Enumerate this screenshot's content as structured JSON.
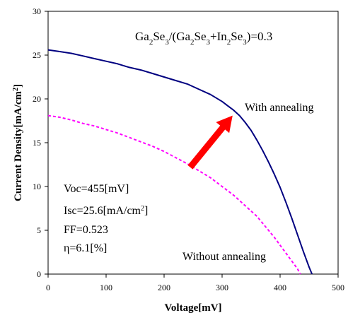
{
  "chart_data": {
    "type": "line",
    "xlabel": "Voltage[mV]",
    "ylabel": "Current Density[mA/cm",
    "ylabel_sup": "2",
    "ylabel_end": "]",
    "xlim": [
      0,
      500
    ],
    "ylim": [
      0,
      30
    ],
    "xticks": [
      "0",
      "100",
      "200",
      "300",
      "400",
      "500"
    ],
    "yticks": [
      "0",
      "5",
      "10",
      "15",
      "20",
      "25",
      "30"
    ],
    "grid": false,
    "formula": {
      "p1": "Ga",
      "s1": "2",
      "p2": "Se",
      "s2": "3",
      "p3": "/(Ga",
      "s3": "2",
      "p4": "Se",
      "s4": "3",
      "p5": "+In",
      "s5": "2",
      "p6": "Se",
      "s6": "3",
      "p7": ")=0.3"
    },
    "params": {
      "voc": "Voc=455[mV]",
      "isc": "Isc=25.6[mA/cm",
      "isc_sup": "2",
      "isc_end": "]",
      "ff": "FF=0.523",
      "eta": "η=6.1[%]"
    },
    "series": [
      {
        "name": "With annealing",
        "color": "#000080",
        "style": "solid",
        "x": [
          0,
          20,
          40,
          60,
          80,
          100,
          120,
          140,
          160,
          180,
          200,
          220,
          240,
          260,
          280,
          300,
          310,
          320,
          330,
          340,
          350,
          360,
          370,
          380,
          390,
          400,
          410,
          420,
          430,
          440,
          450,
          455
        ],
        "y": [
          25.6,
          25.4,
          25.2,
          24.9,
          24.6,
          24.3,
          24.0,
          23.6,
          23.3,
          22.9,
          22.5,
          22.1,
          21.7,
          21.1,
          20.5,
          19.7,
          19.2,
          18.7,
          18.1,
          17.3,
          16.4,
          15.3,
          14.1,
          12.8,
          11.4,
          9.9,
          8.2,
          6.4,
          4.5,
          2.6,
          0.8,
          0
        ]
      },
      {
        "name": "Without annealing",
        "color": "#ff00ff",
        "style": "dashed",
        "x": [
          0,
          20,
          40,
          60,
          80,
          100,
          120,
          140,
          160,
          180,
          200,
          220,
          240,
          260,
          280,
          300,
          320,
          340,
          360,
          380,
          390,
          400,
          410,
          420,
          430,
          435
        ],
        "y": [
          18.1,
          17.9,
          17.6,
          17.2,
          16.9,
          16.5,
          16.1,
          15.6,
          15.1,
          14.6,
          14.0,
          13.3,
          12.6,
          11.8,
          11.0,
          10.0,
          9.0,
          7.8,
          6.6,
          5.0,
          4.2,
          3.3,
          2.4,
          1.5,
          0.6,
          0
        ]
      }
    ],
    "arrow": {
      "color": "#ff0000",
      "from": [
        245,
        12.2
      ],
      "to": [
        318,
        18.1
      ]
    }
  }
}
